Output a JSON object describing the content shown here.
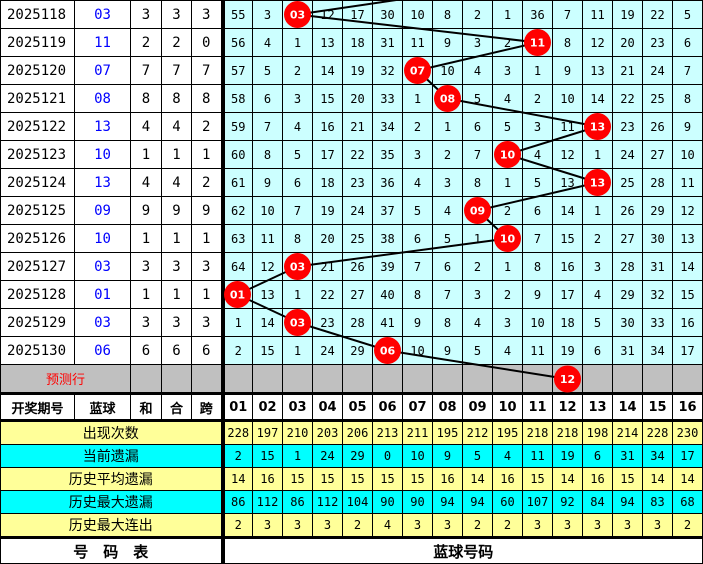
{
  "colors": {
    "ball": "#ff0000",
    "miss_cell": "#ccffff",
    "stat_yellow": "#ffff99",
    "stat_cyan": "#00ffff",
    "blue_text": "#0000ff",
    "predict_row": "#c0c0c0"
  },
  "rows": [
    {
      "period": "2025118",
      "blue": "03",
      "he": "3",
      "hezhi": "3",
      "kua": "3",
      "cells": [
        "55",
        "3",
        "03",
        "12",
        "17",
        "30",
        "10",
        "8",
        "2",
        "1",
        "36",
        "7",
        "11",
        "19",
        "22",
        "5"
      ]
    },
    {
      "period": "2025119",
      "blue": "11",
      "he": "2",
      "hezhi": "2",
      "kua": "0",
      "cells": [
        "56",
        "4",
        "1",
        "13",
        "18",
        "31",
        "11",
        "9",
        "3",
        "2",
        "11",
        "8",
        "12",
        "20",
        "23",
        "6"
      ]
    },
    {
      "period": "2025120",
      "blue": "07",
      "he": "7",
      "hezhi": "7",
      "kua": "7",
      "cells": [
        "57",
        "5",
        "2",
        "14",
        "19",
        "32",
        "07",
        "10",
        "4",
        "3",
        "1",
        "9",
        "13",
        "21",
        "24",
        "7"
      ]
    },
    {
      "period": "2025121",
      "blue": "08",
      "he": "8",
      "hezhi": "8",
      "kua": "8",
      "cells": [
        "58",
        "6",
        "3",
        "15",
        "20",
        "33",
        "1",
        "08",
        "5",
        "4",
        "2",
        "10",
        "14",
        "22",
        "25",
        "8"
      ]
    },
    {
      "period": "2025122",
      "blue": "13",
      "he": "4",
      "hezhi": "4",
      "kua": "2",
      "cells": [
        "59",
        "7",
        "4",
        "16",
        "21",
        "34",
        "2",
        "1",
        "6",
        "5",
        "3",
        "11",
        "13",
        "23",
        "26",
        "9"
      ]
    },
    {
      "period": "2025123",
      "blue": "10",
      "he": "1",
      "hezhi": "1",
      "kua": "1",
      "cells": [
        "60",
        "8",
        "5",
        "17",
        "22",
        "35",
        "3",
        "2",
        "7",
        "10",
        "4",
        "12",
        "1",
        "24",
        "27",
        "10"
      ]
    },
    {
      "period": "2025124",
      "blue": "13",
      "he": "4",
      "hezhi": "4",
      "kua": "2",
      "cells": [
        "61",
        "9",
        "6",
        "18",
        "23",
        "36",
        "4",
        "3",
        "8",
        "1",
        "5",
        "13",
        "13",
        "25",
        "28",
        "11"
      ]
    },
    {
      "period": "2025125",
      "blue": "09",
      "he": "9",
      "hezhi": "9",
      "kua": "9",
      "cells": [
        "62",
        "10",
        "7",
        "19",
        "24",
        "37",
        "5",
        "4",
        "09",
        "2",
        "6",
        "14",
        "1",
        "26",
        "29",
        "12"
      ]
    },
    {
      "period": "2025126",
      "blue": "10",
      "he": "1",
      "hezhi": "1",
      "kua": "1",
      "cells": [
        "63",
        "11",
        "8",
        "20",
        "25",
        "38",
        "6",
        "5",
        "1",
        "10",
        "7",
        "15",
        "2",
        "27",
        "30",
        "13"
      ]
    },
    {
      "period": "2025127",
      "blue": "03",
      "he": "3",
      "hezhi": "3",
      "kua": "3",
      "cells": [
        "64",
        "12",
        "03",
        "21",
        "26",
        "39",
        "7",
        "6",
        "2",
        "1",
        "8",
        "16",
        "3",
        "28",
        "31",
        "14"
      ]
    },
    {
      "period": "2025128",
      "blue": "01",
      "he": "1",
      "hezhi": "1",
      "kua": "1",
      "cells": [
        "01",
        "13",
        "1",
        "22",
        "27",
        "40",
        "8",
        "7",
        "3",
        "2",
        "9",
        "17",
        "4",
        "29",
        "32",
        "15"
      ]
    },
    {
      "period": "2025129",
      "blue": "03",
      "he": "3",
      "hezhi": "3",
      "kua": "3",
      "cells": [
        "1",
        "14",
        "03",
        "23",
        "28",
        "41",
        "9",
        "8",
        "4",
        "3",
        "10",
        "18",
        "5",
        "30",
        "33",
        "16"
      ]
    },
    {
      "period": "2025130",
      "blue": "06",
      "he": "6",
      "hezhi": "6",
      "kua": "6",
      "cells": [
        "2",
        "15",
        "1",
        "24",
        "29",
        "06",
        "10",
        "9",
        "5",
        "4",
        "11",
        "19",
        "6",
        "31",
        "34",
        "17"
      ]
    }
  ],
  "predict": {
    "label": "预测行",
    "blue": "12"
  },
  "header": {
    "period": "开奖期号",
    "blue": "蓝球",
    "he": "和",
    "hezhi": "合",
    "kua": "跨",
    "numbers": [
      "01",
      "02",
      "03",
      "04",
      "05",
      "06",
      "07",
      "08",
      "09",
      "10",
      "11",
      "12",
      "13",
      "14",
      "15",
      "16"
    ]
  },
  "stats": [
    {
      "label": "出现次数",
      "style": "y",
      "values": [
        "228",
        "197",
        "210",
        "203",
        "206",
        "213",
        "211",
        "195",
        "212",
        "195",
        "218",
        "218",
        "198",
        "214",
        "228",
        "230"
      ]
    },
    {
      "label": "当前遗漏",
      "style": "c",
      "values": [
        "2",
        "15",
        "1",
        "24",
        "29",
        "0",
        "10",
        "9",
        "5",
        "4",
        "11",
        "19",
        "6",
        "31",
        "34",
        "17"
      ]
    },
    {
      "label": "历史平均遗漏",
      "style": "y",
      "values": [
        "14",
        "16",
        "15",
        "15",
        "15",
        "15",
        "15",
        "16",
        "14",
        "16",
        "15",
        "14",
        "16",
        "15",
        "14",
        "14"
      ]
    },
    {
      "label": "历史最大遗漏",
      "style": "c",
      "values": [
        "86",
        "112",
        "86",
        "112",
        "104",
        "90",
        "90",
        "94",
        "94",
        "60",
        "107",
        "92",
        "84",
        "94",
        "83",
        "68"
      ]
    },
    {
      "label": "历史最大连出",
      "style": "y",
      "values": [
        "2",
        "3",
        "3",
        "3",
        "2",
        "4",
        "3",
        "3",
        "2",
        "2",
        "3",
        "3",
        "3",
        "3",
        "3",
        "2"
      ]
    }
  ],
  "footer": {
    "left": "号　码　表",
    "right": "蓝球号码"
  }
}
